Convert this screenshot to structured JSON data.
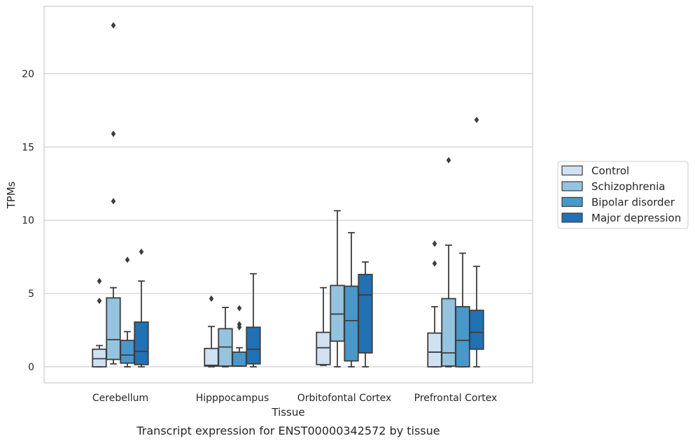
{
  "caption": "Transcript expression for ENST00000342572 by tissue",
  "chart_data": {
    "type": "box",
    "xlabel": "Tissue",
    "ylabel": "TPMs",
    "ylim": [
      -1.1,
      24.6
    ],
    "yticks": [
      0,
      5,
      10,
      15,
      20
    ],
    "grid": "horizontal",
    "legend_position": "outside-right",
    "categories": [
      "Cerebellum",
      "Hipppocampus",
      "Orbitofontal Cortex",
      "Prefrontal Cortex"
    ],
    "series": [
      {
        "name": "Control",
        "color": "#d0e1f2",
        "boxes": [
          {
            "whislo": 0.0,
            "q1": 0.0,
            "med": 0.55,
            "q3": 1.2,
            "whishi": 1.45,
            "fliers": [
              4.5,
              5.85
            ]
          },
          {
            "whislo": 0.0,
            "q1": 0.05,
            "med": 0.1,
            "q3": 1.25,
            "whishi": 2.75,
            "fliers": [
              4.65
            ]
          },
          {
            "whislo": 0.1,
            "q1": 0.15,
            "med": 1.3,
            "q3": 2.35,
            "whishi": 5.4,
            "fliers": []
          },
          {
            "whislo": 0.0,
            "q1": 0.0,
            "med": 1.0,
            "q3": 2.3,
            "whishi": 4.1,
            "fliers": [
              7.05,
              8.4
            ]
          }
        ]
      },
      {
        "name": "Schizophrenia",
        "color": "#94c4df",
        "boxes": [
          {
            "whislo": 0.2,
            "q1": 0.5,
            "med": 1.85,
            "q3": 4.7,
            "whishi": 5.4,
            "fliers": [
              11.3,
              15.9,
              23.3
            ]
          },
          {
            "whislo": 0.0,
            "q1": 0.05,
            "med": 1.35,
            "q3": 2.6,
            "whishi": 4.05,
            "fliers": []
          },
          {
            "whislo": 0.0,
            "q1": 1.75,
            "med": 3.6,
            "q3": 5.55,
            "whishi": 10.65,
            "fliers": []
          },
          {
            "whislo": 0.0,
            "q1": 0.05,
            "med": 0.95,
            "q3": 4.65,
            "whishi": 8.3,
            "fliers": [
              14.1
            ]
          }
        ]
      },
      {
        "name": "Bipolar disorder",
        "color": "#4a98c9",
        "boxes": [
          {
            "whislo": 0.0,
            "q1": 0.25,
            "med": 0.8,
            "q3": 1.8,
            "whishi": 2.4,
            "fliers": [
              7.3
            ]
          },
          {
            "whislo": 0.05,
            "q1": 0.05,
            "med": 0.05,
            "q3": 1.0,
            "whishi": 1.3,
            "fliers": [
              2.7,
              2.9,
              4.0
            ]
          },
          {
            "whislo": 0.0,
            "q1": 0.4,
            "med": 3.15,
            "q3": 5.5,
            "whishi": 9.15,
            "fliers": []
          },
          {
            "whislo": 0.0,
            "q1": 0.0,
            "med": 1.8,
            "q3": 4.1,
            "whishi": 7.75,
            "fliers": []
          }
        ]
      },
      {
        "name": "Major depression",
        "color": "#2171b5",
        "boxes": [
          {
            "whislo": 0.0,
            "q1": 0.15,
            "med": 1.05,
            "q3": 3.05,
            "whishi": 5.85,
            "fliers": [
              7.85
            ]
          },
          {
            "whislo": 0.0,
            "q1": 0.2,
            "med": 1.2,
            "q3": 2.7,
            "whishi": 6.35,
            "fliers": []
          },
          {
            "whislo": 0.0,
            "q1": 0.95,
            "med": 4.9,
            "q3": 6.3,
            "whishi": 7.15,
            "fliers": []
          },
          {
            "whislo": 0.0,
            "q1": 1.2,
            "med": 2.35,
            "q3": 3.85,
            "whishi": 6.85,
            "fliers": [
              16.85
            ]
          }
        ]
      }
    ]
  }
}
